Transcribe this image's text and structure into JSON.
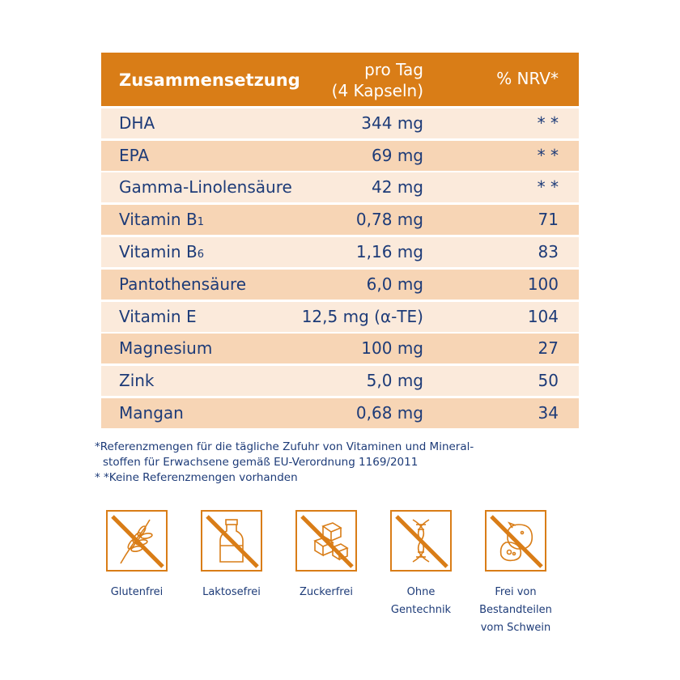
{
  "table": {
    "header": {
      "name": "Zusammensetzung",
      "per_day_line1": "pro Tag",
      "per_day_line2": "(4 Kapseln)",
      "nrv": "% NRV*"
    },
    "rows": [
      {
        "name": "DHA",
        "sub": "",
        "value": "344 mg",
        "nrv": "* *"
      },
      {
        "name": "EPA",
        "sub": "",
        "value": "69 mg",
        "nrv": "* *"
      },
      {
        "name": "Gamma-Linolensäure",
        "sub": "",
        "value": "42 mg",
        "nrv": "* *"
      },
      {
        "name": "Vitamin B",
        "sub": "1",
        "value": "0,78 mg",
        "nrv": "71"
      },
      {
        "name": "Vitamin B",
        "sub": "6",
        "value": "1,16 mg",
        "nrv": "83"
      },
      {
        "name": "Pantothensäure",
        "sub": "",
        "value": "6,0 mg",
        "nrv": "100"
      },
      {
        "name": "Vitamin E",
        "sub": "",
        "value": "12,5 mg (α-TE)",
        "nrv": "104"
      },
      {
        "name": "Magnesium",
        "sub": "",
        "value": "100 mg",
        "nrv": "27"
      },
      {
        "name": "Zink",
        "sub": "",
        "value": "5,0 mg",
        "nrv": "50"
      },
      {
        "name": "Mangan",
        "sub": "",
        "value": "0,68 mg",
        "nrv": "34"
      }
    ]
  },
  "notes": {
    "line1": "*Referenzmengen für die tägliche Zufuhr von Vitaminen und Mineral-",
    "line2": "stoffen für Erwachsene gemäß EU-Verordnung 1169/2011",
    "line3": "* *Keine Referenzmengen vorhanden"
  },
  "icons": [
    {
      "icon": "wheat-icon",
      "line1": "Glutenfrei",
      "line2": "",
      "line3": ""
    },
    {
      "icon": "milk-bottle-icon",
      "line1": "Laktosefrei",
      "line2": "",
      "line3": ""
    },
    {
      "icon": "sugar-cubes-icon",
      "line1": "Zuckerfrei",
      "line2": "",
      "line3": ""
    },
    {
      "icon": "dna-icon",
      "line1": "Ohne",
      "line2": "Gentechnik",
      "line3": ""
    },
    {
      "icon": "pig-icon",
      "line1": "Frei von",
      "line2": "Bestandteilen",
      "line3": "vom Schwein"
    }
  ],
  "colors": {
    "orange": "#d97d17",
    "navy": "#1d3b78",
    "row_light": "#fbeadb",
    "row_dark": "#f7d5b5"
  }
}
